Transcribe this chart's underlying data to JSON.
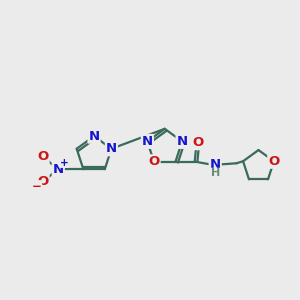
{
  "bg_color": "#ebebeb",
  "bond_color": "#3a6a5a",
  "bond_width": 1.6,
  "N_color": "#1515cc",
  "O_color": "#cc1515",
  "H_color": "#6a8a7a",
  "C_color": "#3a6a5a",
  "figsize": [
    3.0,
    3.0
  ],
  "dpi": 100,
  "xlim": [
    0,
    10
  ],
  "ylim": [
    0,
    10
  ],
  "fs": 9.5,
  "fs_small": 7.5
}
